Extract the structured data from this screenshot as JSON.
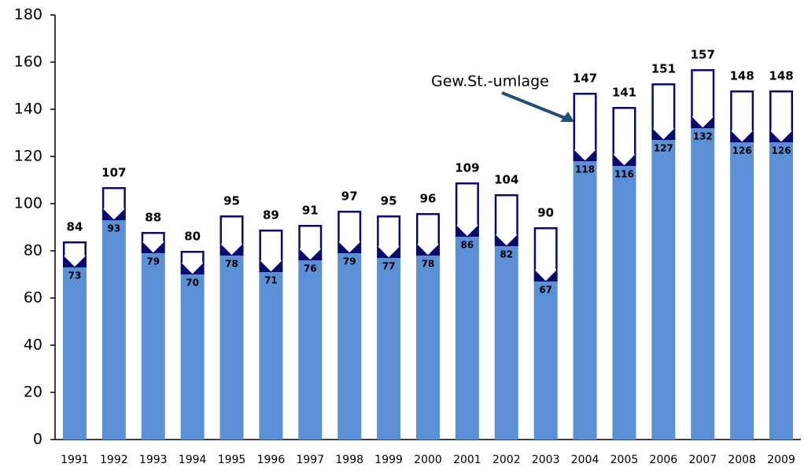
{
  "chart_data": {
    "type": "bar",
    "categories": [
      "1991",
      "1992",
      "1993",
      "1994",
      "1995",
      "1996",
      "1997",
      "1998",
      "1999",
      "2000",
      "2001",
      "2002",
      "2003",
      "2004",
      "2005",
      "2006",
      "2007",
      "2008",
      "2009"
    ],
    "series": [
      {
        "values": [
          84,
          107,
          88,
          80,
          95,
          89,
          91,
          97,
          95,
          96,
          109,
          104,
          90,
          147,
          141,
          151,
          157,
          148,
          148
        ],
        "color": "#0a0a6e"
      },
      {
        "values": [
          73,
          93,
          79,
          70,
          78,
          71,
          76,
          79,
          77,
          78,
          86,
          82,
          67,
          118,
          116,
          127,
          132,
          126,
          126
        ],
        "color": "#5b8fd6"
      }
    ],
    "annotation": "Gew.St.-umlage",
    "ylim": [
      0,
      180
    ],
    "yticks": [
      0,
      20,
      40,
      60,
      80,
      100,
      120,
      140,
      160,
      180
    ]
  }
}
